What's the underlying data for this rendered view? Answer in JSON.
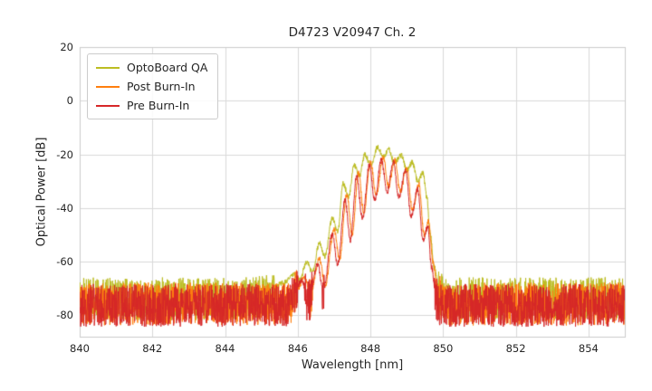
{
  "chart_data": {
    "type": "line",
    "title": "D4723 V20947 Ch. 2",
    "xlabel": "Wavelength [nm]",
    "ylabel": "Optical Power [dB]",
    "xlim": [
      840,
      855
    ],
    "ylim": [
      -88,
      20
    ],
    "xticks": [
      840,
      842,
      844,
      846,
      848,
      850,
      852,
      854
    ],
    "yticks": [
      20,
      0,
      -20,
      -40,
      -60,
      -80
    ],
    "grid": true,
    "legend_position": "upper left",
    "background": "#ffffff",
    "grid_color": "#d9d9d9",
    "axis_border_color": "#cccccc",
    "text_color": "#262626",
    "noise": {
      "floor_threshold": -70,
      "floor_amplitude": 16,
      "peak_amplitude": 2,
      "clamp_min": -87
    },
    "series": [
      {
        "name": "OptoBoard QA",
        "color": "#bcbd22",
        "envelope": [
          [
            840,
            -73
          ],
          [
            844.8,
            -73
          ],
          [
            845.2,
            -71
          ],
          [
            845.6,
            -68
          ],
          [
            845.9,
            -65
          ],
          [
            846.05,
            -67
          ],
          [
            846.25,
            -60
          ],
          [
            846.4,
            -64
          ],
          [
            846.6,
            -53
          ],
          [
            846.75,
            -58
          ],
          [
            846.95,
            -44
          ],
          [
            847.1,
            -49
          ],
          [
            847.25,
            -31
          ],
          [
            847.4,
            -36
          ],
          [
            847.55,
            -24
          ],
          [
            847.7,
            -28
          ],
          [
            847.85,
            -20
          ],
          [
            848.0,
            -24
          ],
          [
            848.2,
            -17.5
          ],
          [
            848.35,
            -21
          ],
          [
            848.5,
            -18
          ],
          [
            848.65,
            -23
          ],
          [
            848.85,
            -20.5
          ],
          [
            849.0,
            -26
          ],
          [
            849.15,
            -23
          ],
          [
            849.3,
            -30
          ],
          [
            849.45,
            -27
          ],
          [
            849.55,
            -36
          ],
          [
            849.65,
            -50
          ],
          [
            849.75,
            -62
          ],
          [
            849.9,
            -71
          ],
          [
            850.05,
            -73
          ],
          [
            855,
            -73
          ]
        ]
      },
      {
        "name": "Post Burn-In",
        "color": "#ff7f0e",
        "envelope": [
          [
            840,
            -75
          ],
          [
            845.75,
            -75
          ],
          [
            846.0,
            -70
          ],
          [
            846.18,
            -66
          ],
          [
            846.35,
            -72
          ],
          [
            846.6,
            -59
          ],
          [
            846.75,
            -69
          ],
          [
            847.0,
            -48
          ],
          [
            847.15,
            -59
          ],
          [
            847.35,
            -35
          ],
          [
            847.5,
            -50
          ],
          [
            847.67,
            -27
          ],
          [
            847.82,
            -42
          ],
          [
            848.0,
            -23
          ],
          [
            848.16,
            -35
          ],
          [
            848.35,
            -21
          ],
          [
            848.5,
            -32
          ],
          [
            848.67,
            -22
          ],
          [
            848.82,
            -34
          ],
          [
            849.0,
            -25
          ],
          [
            849.16,
            -41
          ],
          [
            849.33,
            -31
          ],
          [
            849.48,
            -50
          ],
          [
            849.6,
            -45
          ],
          [
            849.72,
            -60
          ],
          [
            849.85,
            -71
          ],
          [
            850.0,
            -75
          ],
          [
            855,
            -75
          ]
        ]
      },
      {
        "name": "Pre Burn-In",
        "color": "#d62728",
        "envelope": [
          [
            840,
            -75.5
          ],
          [
            845.7,
            -75.5
          ],
          [
            845.95,
            -71
          ],
          [
            846.1,
            -67
          ],
          [
            846.3,
            -74
          ],
          [
            846.55,
            -61
          ],
          [
            846.7,
            -71
          ],
          [
            846.95,
            -50
          ],
          [
            847.1,
            -61
          ],
          [
            847.3,
            -37
          ],
          [
            847.45,
            -52
          ],
          [
            847.62,
            -28
          ],
          [
            847.78,
            -44
          ],
          [
            847.97,
            -24
          ],
          [
            848.12,
            -37
          ],
          [
            848.3,
            -22
          ],
          [
            848.46,
            -34
          ],
          [
            848.63,
            -23
          ],
          [
            848.78,
            -36
          ],
          [
            848.97,
            -26
          ],
          [
            849.12,
            -43
          ],
          [
            849.3,
            -33
          ],
          [
            849.45,
            -52
          ],
          [
            849.58,
            -47
          ],
          [
            849.68,
            -62
          ],
          [
            849.8,
            -73
          ],
          [
            849.95,
            -75.5
          ],
          [
            855,
            -75.5
          ]
        ]
      }
    ]
  }
}
